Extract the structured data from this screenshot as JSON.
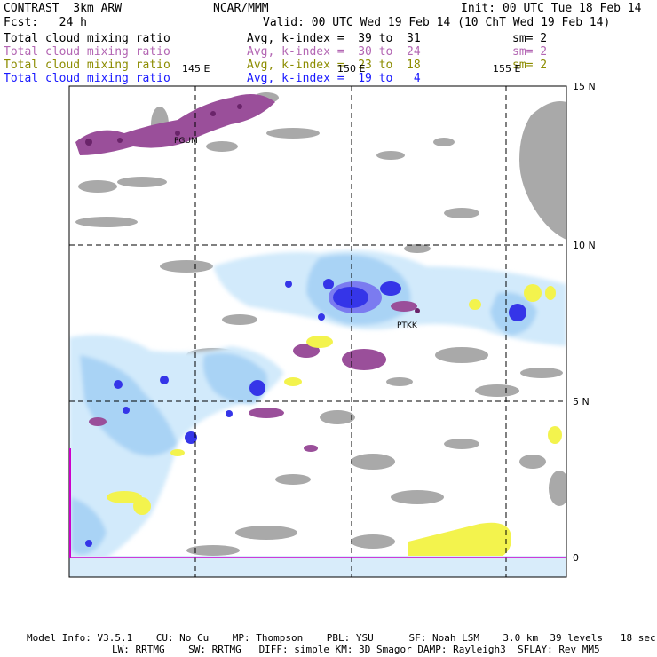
{
  "header": {
    "model": "CONTRAST  3km ARW",
    "center": "NCAR/MMM",
    "init": "Init: 00 UTC Tue 18 Feb 14",
    "fcst": "Fcst:   24 h",
    "valid": "Valid: 00 UTC Wed 19 Feb 14 (10 ChT Wed 19 Feb 14)"
  },
  "legend": [
    {
      "field": "Total cloud mixing ratio",
      "stat": "Avg, k-index =  39 to  31",
      "smooth": "sm= 2",
      "color": "#000000"
    },
    {
      "field": "Total cloud mixing ratio",
      "stat": "Avg, k-index =  30 to  24",
      "smooth": "sm= 2",
      "color": "#b366b3"
    },
    {
      "field": "Total cloud mixing ratio",
      "stat": "Avg, k-index =  23 to  18",
      "smooth": "sm= 2",
      "color": "#8c8c00"
    },
    {
      "field": "Total cloud mixing ratio",
      "stat": "Avg, k-index =  19 to   4",
      "smooth": "",
      "color": "#1a1aff"
    }
  ],
  "map": {
    "lon_labels": [
      "145 E",
      "150 E",
      "155 E"
    ],
    "lat_labels": [
      "15 N",
      "10 N",
      "5 N",
      "0"
    ],
    "stations": [
      "PGUM",
      "PTKK"
    ],
    "colors": {
      "land_gray": "#a9a9a9",
      "high_purple": "#8b3d8b",
      "mid_yellow": "#f5f542",
      "low_lightblue": "#c8e6fa",
      "low_blue": "#7fb4f0",
      "low_deep": "#1a1aee"
    }
  },
  "footer": {
    "line1": "Model Info: V3.5.1    CU: No Cu    MP: Thompson    PBL: YSU      SF: Noah LSM    3.0 km  39 levels   18 sec",
    "line2": "LW: RRTMG    SW: RRTMG   DIFF: simple KM: 3D Smagor DAMP: Rayleigh3  SFLAY: Rev MM5"
  }
}
